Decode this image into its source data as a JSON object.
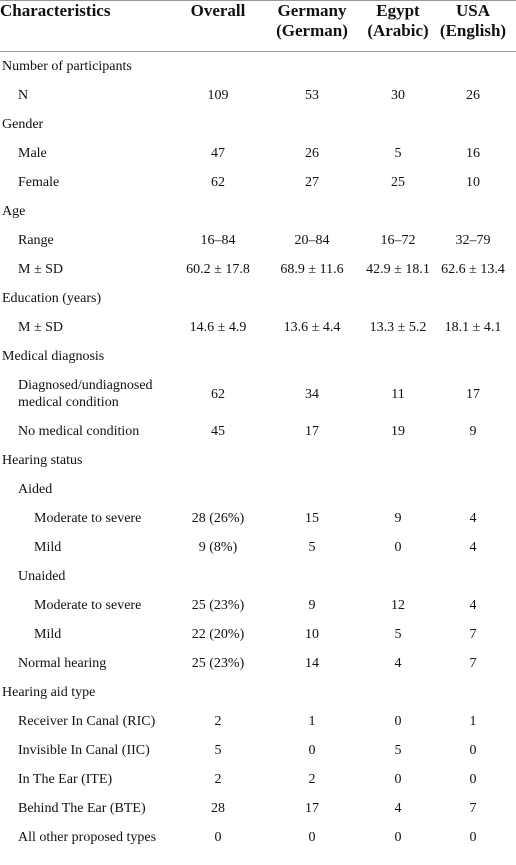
{
  "table": {
    "columns": [
      "Characteristics",
      "Overall",
      "Germany (German)",
      "Egypt (Arabic)",
      "USA (English)"
    ],
    "rows": [
      {
        "label": "Number of participants",
        "rows": [
          {
            "label": "N",
            "cells": [
              "109",
              "53",
              "30",
              "26"
            ]
          }
        ]
      },
      {
        "label": "Gender",
        "rows": [
          {
            "label": "Male",
            "cells": [
              "47",
              "26",
              "5",
              "16"
            ]
          },
          {
            "label": "Female",
            "cells": [
              "62",
              "27",
              "25",
              "10"
            ]
          }
        ]
      },
      {
        "label": "Age",
        "rows": [
          {
            "label": "Range",
            "cells": [
              "16–84",
              "20–84",
              "16–72",
              "32–79"
            ]
          },
          {
            "label": "M ± SD",
            "cells": [
              "60.2 ± 17.8",
              "68.9 ± 11.6",
              "42.9 ± 18.1",
              "62.6 ± 13.4"
            ]
          }
        ]
      },
      {
        "label": "Education (years)",
        "rows": [
          {
            "label": "M ± SD",
            "cells": [
              "14.6 ± 4.9",
              "13.6 ± 4.4",
              "13.3 ± 5.2",
              "18.1 ± 4.1"
            ]
          }
        ]
      },
      {
        "label": "Medical diagnosis",
        "rows": [
          {
            "label": "Diagnosed/undiagnosed medical condition",
            "cells": [
              "62",
              "34",
              "11",
              "17"
            ]
          },
          {
            "label": "No medical condition",
            "cells": [
              "45",
              "17",
              "19",
              "9"
            ]
          }
        ]
      },
      {
        "label": "Hearing status",
        "rows": [
          {
            "label": "Aided",
            "rows": [
              {
                "label": "Moderate to severe",
                "cells": [
                  "28 (26%)",
                  "15",
                  "9",
                  "4"
                ]
              },
              {
                "label": "Mild",
                "cells": [
                  "9 (8%)",
                  "5",
                  "0",
                  "4"
                ]
              }
            ]
          },
          {
            "label": "Unaided",
            "rows": [
              {
                "label": "Moderate to severe",
                "cells": [
                  "25 (23%)",
                  "9",
                  "12",
                  "4"
                ]
              },
              {
                "label": "Mild",
                "cells": [
                  "22 (20%)",
                  "10",
                  "5",
                  "7"
                ]
              }
            ]
          },
          {
            "label": "Normal hearing",
            "cells": [
              "25 (23%)",
              "14",
              "4",
              "7"
            ]
          }
        ]
      },
      {
        "label": "Hearing aid type",
        "rows": [
          {
            "label": "Receiver In Canal (RIC)",
            "cells": [
              "2",
              "1",
              "0",
              "1"
            ]
          },
          {
            "label": "Invisible In Canal (IIC)",
            "cells": [
              "5",
              "0",
              "5",
              "0"
            ]
          },
          {
            "label": "In The Ear (ITE)",
            "cells": [
              "2",
              "2",
              "0",
              "0"
            ]
          },
          {
            "label": "Behind The Ear (BTE)",
            "cells": [
              "28",
              "17",
              "4",
              "7"
            ]
          },
          {
            "label": "All other proposed types",
            "cells": [
              "0",
              "0",
              "0",
              "0"
            ]
          }
        ]
      }
    ]
  }
}
